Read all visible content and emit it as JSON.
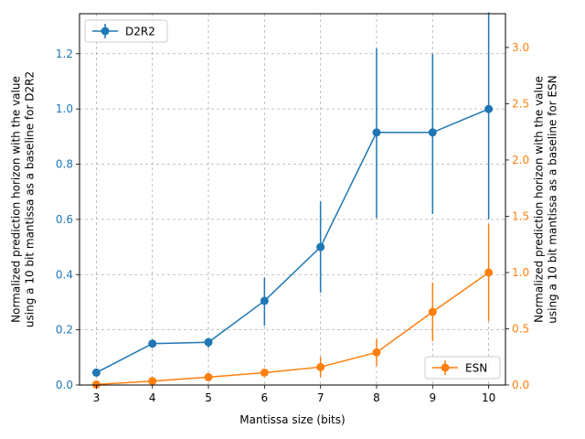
{
  "chart_data": {
    "type": "line",
    "xlabel": "Mantissa size (bits)",
    "ylabel_left": "Normalized prediction horizon with the value\nusing a 10 bit mantissa as a baseline for D2R2",
    "ylabel_right": "Normalized prediction horizon with the value\nusing a 10 bit mantissa as a baseline for ESN",
    "x": [
      3,
      4,
      5,
      6,
      7,
      8,
      9,
      10
    ],
    "xlim": [
      2.7,
      10.3
    ],
    "grid": true,
    "axes": {
      "left": {
        "ylim": [
          0,
          1.345
        ],
        "ticks": [
          0.0,
          0.2,
          0.4,
          0.6,
          0.8,
          1.0,
          1.2
        ],
        "tick_labels": [
          "0.0",
          "0.2",
          "0.4",
          "0.6",
          "0.8",
          "1.0",
          "1.2"
        ]
      },
      "right": {
        "ylim": [
          0,
          3.3
        ],
        "ticks": [
          0.0,
          0.5,
          1.0,
          1.5,
          2.0,
          2.5,
          3.0
        ],
        "tick_labels": [
          "0.0",
          "0.5",
          "1.0",
          "1.5",
          "2.0",
          "2.5",
          "3.0"
        ]
      }
    },
    "series": [
      {
        "name": "D2R2",
        "axis": "left",
        "color": "#1f77b4",
        "values": [
          0.045,
          0.15,
          0.155,
          0.305,
          0.5,
          0.915,
          0.915,
          1.0
        ],
        "err_low": [
          0.035,
          0.135,
          0.135,
          0.215,
          0.335,
          0.605,
          0.62,
          0.6
        ],
        "err_high": [
          0.055,
          0.165,
          0.17,
          0.39,
          0.665,
          1.22,
          1.2,
          1.35
        ],
        "legend_position": "upper-left"
      },
      {
        "name": "ESN",
        "axis": "right",
        "color": "#ff7f0e",
        "values": [
          0.005,
          0.035,
          0.07,
          0.11,
          0.16,
          0.29,
          0.65,
          1.0
        ],
        "err_low": [
          0.0,
          0.025,
          0.06,
          0.095,
          0.07,
          0.17,
          0.39,
          0.57
        ],
        "err_high": [
          0.01,
          0.045,
          0.08,
          0.125,
          0.25,
          0.41,
          0.91,
          1.43
        ],
        "legend_position": "lower-right"
      }
    ]
  }
}
